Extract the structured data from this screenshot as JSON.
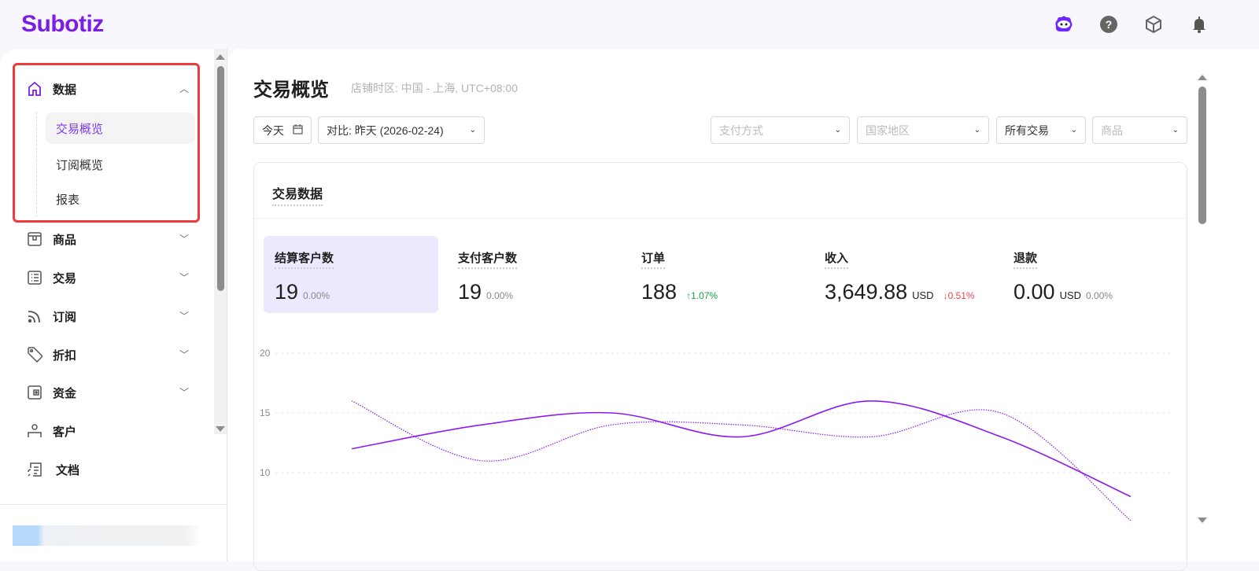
{
  "header": {
    "logo": "Subotiz",
    "icons": [
      "assistant-bot-icon",
      "help-icon",
      "package-icon",
      "bell-icon"
    ],
    "brand_color": "#7c1de6"
  },
  "sidebar": {
    "groups": [
      {
        "label": "数据",
        "icon": "home-icon",
        "expanded": true,
        "children": [
          {
            "label": "交易概览",
            "active": true
          },
          {
            "label": "订阅概览"
          },
          {
            "label": "报表"
          }
        ]
      },
      {
        "label": "商品",
        "icon": "box-icon"
      },
      {
        "label": "交易",
        "icon": "list-icon"
      },
      {
        "label": "订阅",
        "icon": "rss-icon"
      },
      {
        "label": "折扣",
        "icon": "tag-icon"
      },
      {
        "label": "资金",
        "icon": "wallet-icon"
      },
      {
        "label": "客户",
        "icon": "user-icon"
      },
      {
        "label": "文档",
        "icon": "document-icon"
      }
    ]
  },
  "page": {
    "title": "交易概览",
    "timezone": "店铺时区: 中国 - 上海, UTC+08:00",
    "filters": {
      "date": "今天",
      "compare": "对比:  昨天 (2026-02-24)",
      "payment_placeholder": "支付方式",
      "region_placeholder": "国家地区",
      "transaction_type": "所有交易",
      "product_placeholder": "商品"
    }
  },
  "card": {
    "title": "交易数据",
    "metrics": [
      {
        "label": "结算客户数",
        "value": "19",
        "unit": "",
        "change": "0.00%",
        "trend": "flat"
      },
      {
        "label": "支付客户数",
        "value": "19",
        "unit": "",
        "change": "0.00%",
        "trend": "flat"
      },
      {
        "label": "订单",
        "value": "188",
        "unit": "",
        "change": "↑1.07%",
        "trend": "up"
      },
      {
        "label": "收入",
        "value": "3,649.88",
        "unit": "USD",
        "change": "↓0.51%",
        "trend": "down"
      },
      {
        "label": "退款",
        "value": "0.00",
        "unit": "USD",
        "change": "0.00%",
        "trend": "flat"
      }
    ]
  },
  "chart_data": {
    "type": "line",
    "ylim": [
      5,
      20
    ],
    "y_ticks": [
      "20",
      "15",
      "10"
    ],
    "grid": true,
    "series": [
      {
        "style": "solid",
        "color": "#8b1cf0",
        "values": [
          12,
          14,
          15,
          13,
          16,
          13,
          8
        ]
      },
      {
        "style": "dotted",
        "color": "#8b1cf0",
        "values": [
          16,
          11,
          14,
          14,
          13,
          15,
          6
        ]
      }
    ]
  }
}
